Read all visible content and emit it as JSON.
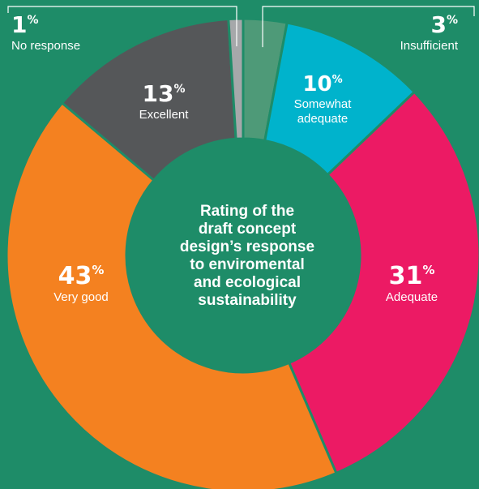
{
  "chart_data": {
    "type": "pie",
    "title_lines": [
      "Rating of the",
      "draft concept",
      "design’s response",
      "to enviromental",
      "and ecological",
      "sustainability"
    ],
    "slices": [
      {
        "label": "Insufficient",
        "value": 3,
        "color": "#4e9a78"
      },
      {
        "label": "Somewhat adequate",
        "label_lines": [
          "Somewhat",
          "adequate"
        ],
        "value": 10,
        "color": "#00b3cc"
      },
      {
        "label": "Adequate",
        "value": 31,
        "color": "#ec1a64"
      },
      {
        "label": "Very good",
        "value": 43,
        "color": "#f48120"
      },
      {
        "label": "Excellent",
        "value": 13,
        "color": "#555759"
      },
      {
        "label": "No response",
        "value": 1,
        "color": "#a6a8aa"
      }
    ],
    "percent_symbol": "%",
    "background_color": "#1e8c68",
    "divider_color": "#1e8c68",
    "style": "donut"
  }
}
